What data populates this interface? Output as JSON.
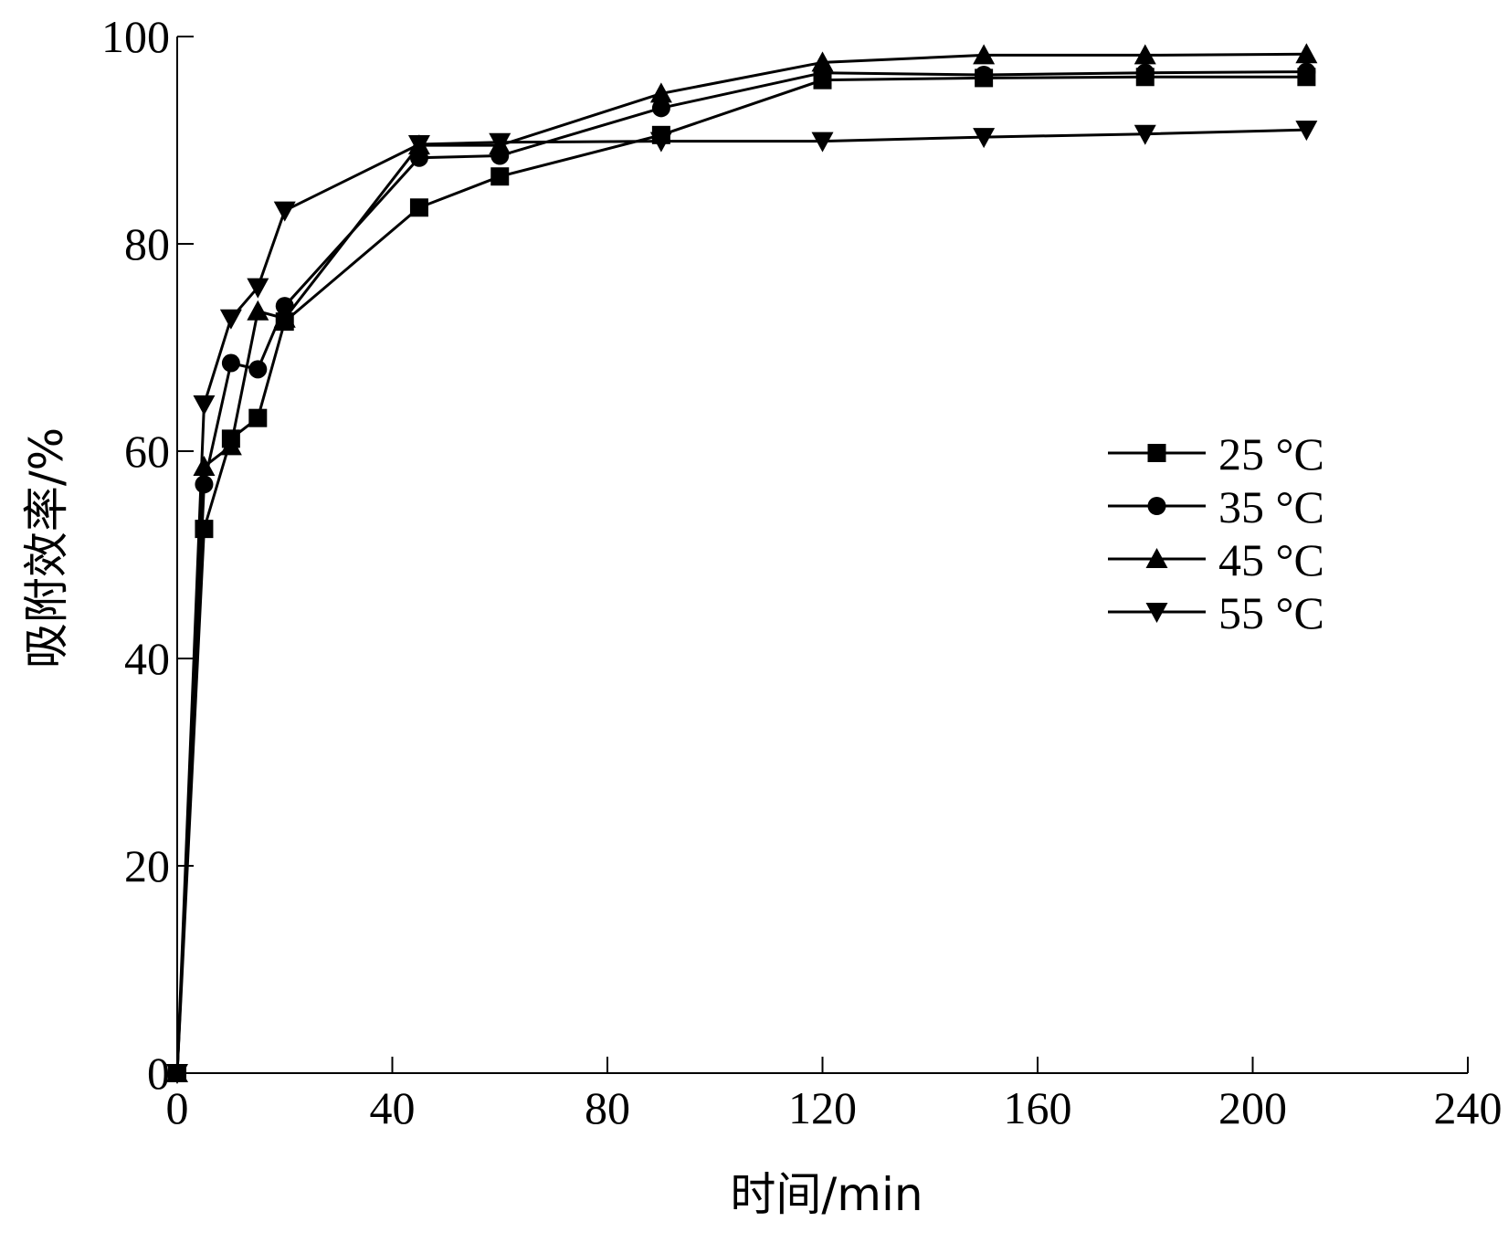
{
  "chart_data": {
    "type": "line",
    "xlabel": "时间/min",
    "ylabel": "吸附效率/%",
    "xlim": [
      0,
      240
    ],
    "ylim": [
      0,
      100
    ],
    "xticks": [
      "0",
      "40",
      "80",
      "120",
      "160",
      "200",
      "240"
    ],
    "yticks": [
      "0",
      "20",
      "40",
      "60",
      "80",
      "100"
    ],
    "grid": false,
    "legend_position": "right",
    "x": [
      0,
      5,
      10,
      15,
      20,
      45,
      60,
      90,
      120,
      150,
      180,
      210
    ],
    "series": [
      {
        "name": "25 °C",
        "marker": "square",
        "values": [
          0,
          52.5,
          61.2,
          63.2,
          72.5,
          83.5,
          86.5,
          90.5,
          95.8,
          96.0,
          96.1,
          96.1
        ]
      },
      {
        "name": "35 °C",
        "marker": "circle",
        "values": [
          0,
          56.8,
          68.5,
          67.9,
          74.0,
          88.3,
          88.5,
          93.1,
          96.5,
          96.3,
          96.5,
          96.6
        ]
      },
      {
        "name": "45 °C",
        "marker": "triangle-up",
        "values": [
          0,
          58.5,
          60.5,
          73.5,
          72.8,
          89.5,
          89.5,
          94.5,
          97.5,
          98.2,
          98.2,
          98.3
        ]
      },
      {
        "name": "55 °C",
        "marker": "triangle-down",
        "values": [
          0,
          64.5,
          72.8,
          75.8,
          83.2,
          89.6,
          89.8,
          89.9,
          89.9,
          90.3,
          90.6,
          91.0
        ]
      }
    ]
  }
}
